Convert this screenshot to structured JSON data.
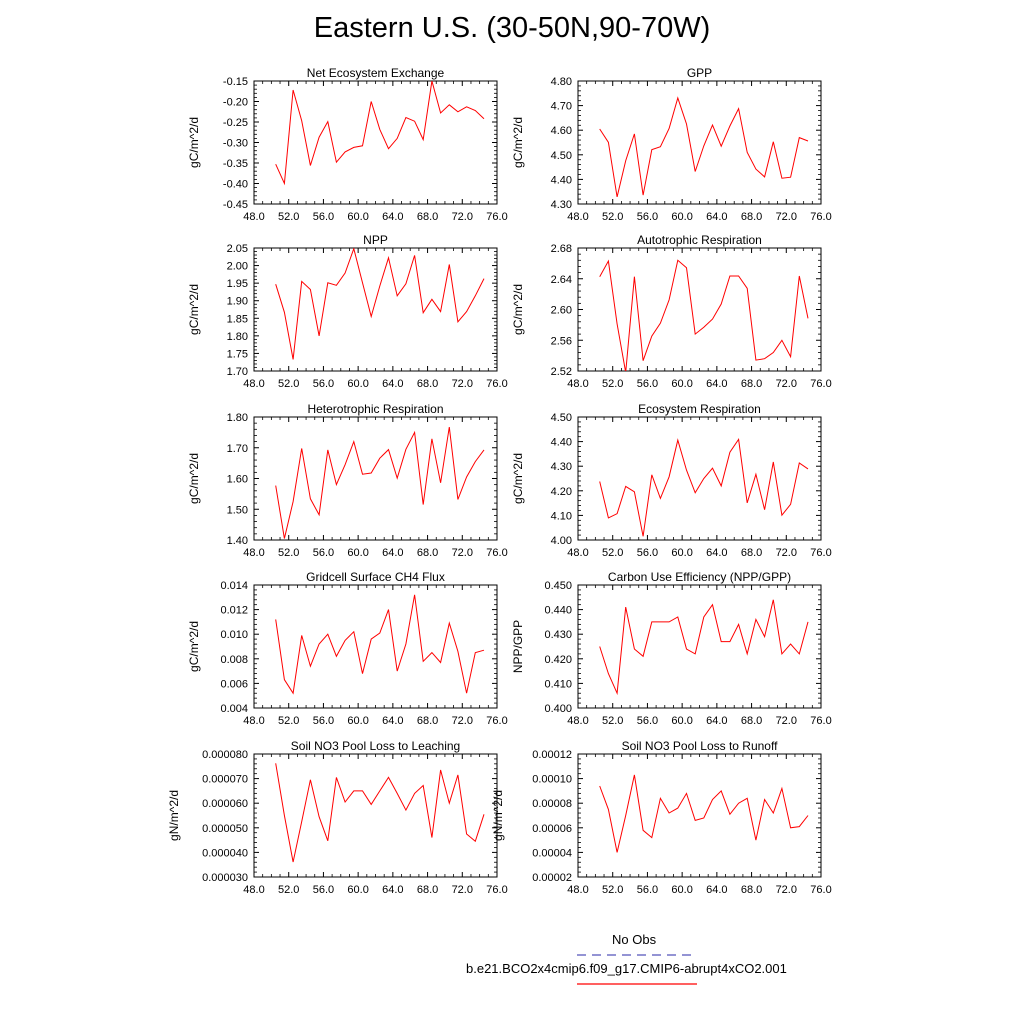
{
  "title": "Eastern U.S. (30-50N,90-70W)",
  "series_colors": {
    "model": "#ff0000",
    "obs": "#5555bb"
  },
  "legend": {
    "obs_label": "No Obs",
    "model_label": "b.e21.BCO2x4cmip6.f09_g17.CMIP6-abrupt4xCO2.001"
  },
  "chart_data": [
    {
      "type": "line",
      "title": "Net Ecosystem Exchange",
      "xlabel": "",
      "ylabel": "gC/m^2/d",
      "xlim": [
        48,
        76
      ],
      "ylim": [
        -0.45,
        -0.15
      ],
      "xticks": [
        "48.0",
        "52.0",
        "56.0",
        "60.0",
        "64.0",
        "68.0",
        "72.0",
        "76.0"
      ],
      "yticks": [
        "-0.45",
        "-0.40",
        "-0.35",
        "-0.30",
        "-0.25",
        "-0.20",
        "-0.15"
      ],
      "x": [
        50.5,
        51.5,
        52.5,
        53.5,
        54.5,
        55.5,
        56.5,
        57.5,
        58.5,
        59.5,
        60.5,
        61.5,
        62.5,
        63.5,
        64.5,
        65.5,
        66.5,
        67.5,
        68.5,
        69.5,
        70.5,
        71.5,
        72.5,
        73.5,
        74.5
      ],
      "values": [
        -0.353,
        -0.4,
        -0.172,
        -0.247,
        -0.356,
        -0.287,
        -0.249,
        -0.348,
        -0.323,
        -0.312,
        -0.308,
        -0.2,
        -0.268,
        -0.315,
        -0.29,
        -0.239,
        -0.248,
        -0.293,
        -0.15,
        -0.228,
        -0.208,
        -0.225,
        -0.213,
        -0.222,
        -0.242
      ]
    },
    {
      "type": "line",
      "title": "GPP",
      "xlabel": "",
      "ylabel": "gC/m^2/d",
      "xlim": [
        48,
        76
      ],
      "ylim": [
        4.3,
        4.8
      ],
      "xticks": [
        "48.0",
        "52.0",
        "56.0",
        "60.0",
        "64.0",
        "68.0",
        "72.0",
        "76.0"
      ],
      "yticks": [
        "4.30",
        "4.40",
        "4.50",
        "4.60",
        "4.70",
        "4.80"
      ],
      "x": [
        50.5,
        51.5,
        52.5,
        53.5,
        54.5,
        55.5,
        56.5,
        57.5,
        58.5,
        59.5,
        60.5,
        61.5,
        62.5,
        63.5,
        64.5,
        65.5,
        66.5,
        67.5,
        68.5,
        69.5,
        70.5,
        71.5,
        72.5,
        73.5,
        74.5
      ],
      "values": [
        4.605,
        4.551,
        4.329,
        4.476,
        4.585,
        4.336,
        4.521,
        4.533,
        4.607,
        4.731,
        4.625,
        4.432,
        4.536,
        4.621,
        4.535,
        4.617,
        4.688,
        4.51,
        4.442,
        4.41,
        4.553,
        4.405,
        4.409,
        4.57,
        4.556
      ]
    },
    {
      "type": "line",
      "title": "NPP",
      "xlabel": "",
      "ylabel": "gC/m^2/d",
      "xlim": [
        48,
        76
      ],
      "ylim": [
        1.7,
        2.05
      ],
      "xticks": [
        "48.0",
        "52.0",
        "56.0",
        "60.0",
        "64.0",
        "68.0",
        "72.0",
        "76.0"
      ],
      "yticks": [
        "1.70",
        "1.75",
        "1.80",
        "1.85",
        "1.90",
        "1.95",
        "2.00",
        "2.05"
      ],
      "x": [
        50.5,
        51.5,
        52.5,
        53.5,
        54.5,
        55.5,
        56.5,
        57.5,
        58.5,
        59.5,
        60.5,
        61.5,
        62.5,
        63.5,
        64.5,
        65.5,
        66.5,
        67.5,
        68.5,
        69.5,
        70.5,
        71.5,
        72.5,
        73.5,
        74.5
      ],
      "values": [
        1.947,
        1.867,
        1.733,
        1.955,
        1.932,
        1.8,
        1.951,
        1.944,
        1.979,
        2.048,
        1.951,
        1.855,
        1.942,
        2.022,
        1.914,
        1.948,
        2.029,
        1.866,
        1.904,
        1.869,
        2.003,
        1.84,
        1.869,
        1.914,
        1.963
      ]
    },
    {
      "type": "line",
      "title": "Autotrophic Respiration",
      "xlabel": "",
      "ylabel": "gC/m^2/d",
      "xlim": [
        48,
        76
      ],
      "ylim": [
        2.52,
        2.7
      ],
      "xticks": [
        "48.0",
        "52.0",
        "56.0",
        "60.0",
        "64.0",
        "68.0",
        "72.0",
        "76.0"
      ],
      "yticks": [
        "2.52",
        "2.56",
        "2.60",
        "2.64",
        "2.68"
      ],
      "x": [
        50.5,
        51.5,
        52.5,
        53.5,
        54.5,
        55.5,
        56.5,
        57.5,
        58.5,
        59.5,
        60.5,
        61.5,
        62.5,
        63.5,
        64.5,
        65.5,
        66.5,
        67.5,
        68.5,
        69.5,
        70.5,
        71.5,
        72.5,
        73.5,
        74.5
      ],
      "values": [
        2.658,
        2.681,
        2.589,
        2.518,
        2.658,
        2.535,
        2.571,
        2.59,
        2.624,
        2.682,
        2.671,
        2.574,
        2.584,
        2.596,
        2.618,
        2.659,
        2.659,
        2.641,
        2.536,
        2.538,
        2.547,
        2.565,
        2.541,
        2.659,
        2.597
      ]
    },
    {
      "type": "line",
      "title": "Heterotrophic Respiration",
      "xlabel": "",
      "ylabel": "gC/m^2/d",
      "xlim": [
        48,
        76
      ],
      "ylim": [
        1.4,
        1.8
      ],
      "xticks": [
        "48.0",
        "52.0",
        "56.0",
        "60.0",
        "64.0",
        "68.0",
        "72.0",
        "76.0"
      ],
      "yticks": [
        "1.40",
        "1.50",
        "1.60",
        "1.70",
        "1.80"
      ],
      "x": [
        50.5,
        51.5,
        52.5,
        53.5,
        54.5,
        55.5,
        56.5,
        57.5,
        58.5,
        59.5,
        60.5,
        61.5,
        62.5,
        63.5,
        64.5,
        65.5,
        66.5,
        67.5,
        68.5,
        69.5,
        70.5,
        71.5,
        72.5,
        73.5,
        74.5
      ],
      "values": [
        1.577,
        1.405,
        1.525,
        1.698,
        1.534,
        1.482,
        1.693,
        1.58,
        1.645,
        1.72,
        1.614,
        1.618,
        1.666,
        1.694,
        1.601,
        1.695,
        1.75,
        1.515,
        1.729,
        1.586,
        1.767,
        1.532,
        1.605,
        1.655,
        1.693
      ]
    },
    {
      "type": "line",
      "title": "Ecosystem Respiration",
      "xlabel": "",
      "ylabel": "gC/m^2/d",
      "xlim": [
        48,
        76
      ],
      "ylim": [
        4.0,
        4.5
      ],
      "xticks": [
        "48.0",
        "52.0",
        "56.0",
        "60.0",
        "64.0",
        "68.0",
        "72.0",
        "76.0"
      ],
      "yticks": [
        "4.00",
        "4.10",
        "4.20",
        "4.30",
        "4.40",
        "4.50"
      ],
      "x": [
        50.5,
        51.5,
        52.5,
        53.5,
        54.5,
        55.5,
        56.5,
        57.5,
        58.5,
        59.5,
        60.5,
        61.5,
        62.5,
        63.5,
        64.5,
        65.5,
        66.5,
        67.5,
        68.5,
        69.5,
        70.5,
        71.5,
        72.5,
        73.5,
        74.5
      ],
      "values": [
        4.238,
        4.09,
        4.107,
        4.218,
        4.196,
        4.015,
        4.265,
        4.169,
        4.257,
        4.406,
        4.284,
        4.192,
        4.25,
        4.292,
        4.22,
        4.357,
        4.409,
        4.151,
        4.267,
        4.123,
        4.317,
        4.101,
        4.145,
        4.313,
        4.289
      ]
    },
    {
      "type": "line",
      "title": "Gridcell Surface CH4 Flux",
      "xlabel": "",
      "ylabel": "gC/m^2/d",
      "xlim": [
        48,
        76
      ],
      "ylim": [
        0.004,
        0.014
      ],
      "xticks": [
        "48.0",
        "52.0",
        "56.0",
        "60.0",
        "64.0",
        "68.0",
        "72.0",
        "76.0"
      ],
      "yticks": [
        "0.004",
        "0.006",
        "0.008",
        "0.010",
        "0.012",
        "0.014"
      ],
      "x": [
        50.5,
        51.5,
        52.5,
        53.5,
        54.5,
        55.5,
        56.5,
        57.5,
        58.5,
        59.5,
        60.5,
        61.5,
        62.5,
        63.5,
        64.5,
        65.5,
        66.5,
        67.5,
        68.5,
        69.5,
        70.5,
        71.5,
        72.5,
        73.5,
        74.5
      ],
      "values": [
        0.0112,
        0.0063,
        0.0052,
        0.0099,
        0.0074,
        0.0092,
        0.01,
        0.0082,
        0.0095,
        0.0102,
        0.0068,
        0.0096,
        0.0101,
        0.012,
        0.007,
        0.0092,
        0.0132,
        0.0078,
        0.0085,
        0.0077,
        0.0109,
        0.0086,
        0.0052,
        0.0085,
        0.0087
      ]
    },
    {
      "type": "line",
      "title": "Carbon Use Efficiency (NPP/GPP)",
      "xlabel": "",
      "ylabel": "NPP/GPP",
      "xlim": [
        48,
        76
      ],
      "ylim": [
        0.4,
        0.45
      ],
      "xticks": [
        "48.0",
        "52.0",
        "56.0",
        "60.0",
        "64.0",
        "68.0",
        "72.0",
        "76.0"
      ],
      "yticks": [
        "0.400",
        "0.410",
        "0.420",
        "0.430",
        "0.440",
        "0.450"
      ],
      "x": [
        50.5,
        51.5,
        52.5,
        53.5,
        54.5,
        55.5,
        56.5,
        57.5,
        58.5,
        59.5,
        60.5,
        61.5,
        62.5,
        63.5,
        64.5,
        65.5,
        66.5,
        67.5,
        68.5,
        69.5,
        70.5,
        71.5,
        72.5,
        73.5,
        74.5
      ],
      "values": [
        0.425,
        0.414,
        0.406,
        0.441,
        0.424,
        0.421,
        0.435,
        0.435,
        0.435,
        0.437,
        0.424,
        0.422,
        0.437,
        0.442,
        0.427,
        0.427,
        0.434,
        0.422,
        0.436,
        0.429,
        0.444,
        0.422,
        0.426,
        0.422,
        0.435
      ]
    },
    {
      "type": "line",
      "title": "Soil NO3 Pool Loss to Leaching",
      "xlabel": "",
      "ylabel": "gN/m^2/d",
      "xlim": [
        48,
        76
      ],
      "ylim": [
        3e-05,
        8e-05
      ],
      "xticks": [
        "48.0",
        "52.0",
        "56.0",
        "60.0",
        "64.0",
        "68.0",
        "72.0",
        "76.0"
      ],
      "yticks": [
        "0.000030",
        "0.000040",
        "0.000050",
        "0.000060",
        "0.000070",
        "0.000080"
      ],
      "x": [
        50.5,
        51.5,
        52.5,
        53.5,
        54.5,
        55.5,
        56.5,
        57.5,
        58.5,
        59.5,
        60.5,
        61.5,
        62.5,
        63.5,
        64.5,
        65.5,
        66.5,
        67.5,
        68.5,
        69.5,
        70.5,
        71.5,
        72.5,
        73.5,
        74.5
      ],
      "values": [
        7.62e-05,
        5.5e-05,
        3.61e-05,
        5.25e-05,
        6.95e-05,
        5.45e-05,
        4.47e-05,
        7.05e-05,
        6.05e-05,
        6.5e-05,
        6.5e-05,
        5.95e-05,
        6.5e-05,
        7.05e-05,
        6.4e-05,
        5.72e-05,
        6.4e-05,
        6.72e-05,
        4.6e-05,
        7.35e-05,
        6e-05,
        7.15e-05,
        4.75e-05,
        4.45e-05,
        5.55e-05
      ]
    },
    {
      "type": "line",
      "title": "Soil NO3 Pool Loss to Runoff",
      "xlabel": "",
      "ylabel": "gN/m^2/d",
      "xlim": [
        48,
        76
      ],
      "ylim": [
        2e-05,
        0.00012
      ],
      "xticks": [
        "48.0",
        "52.0",
        "56.0",
        "60.0",
        "64.0",
        "68.0",
        "72.0",
        "76.0"
      ],
      "yticks": [
        "0.00002",
        "0.00004",
        "0.00006",
        "0.00008",
        "0.00010",
        "0.00012"
      ],
      "x": [
        50.5,
        51.5,
        52.5,
        53.5,
        54.5,
        55.5,
        56.5,
        57.5,
        58.5,
        59.5,
        60.5,
        61.5,
        62.5,
        63.5,
        64.5,
        65.5,
        66.5,
        67.5,
        68.5,
        69.5,
        70.5,
        71.5,
        72.5,
        73.5,
        74.5
      ],
      "values": [
        9.4e-05,
        7.5e-05,
        4e-05,
        7e-05,
        0.000103,
        5.8e-05,
        5.2e-05,
        8.4e-05,
        7.2e-05,
        7.6e-05,
        8.8e-05,
        6.6e-05,
        6.8e-05,
        8.3e-05,
        9e-05,
        7.1e-05,
        8e-05,
        8.4e-05,
        5e-05,
        8.3e-05,
        7.2e-05,
        9.2e-05,
        6e-05,
        6.1e-05,
        7e-05
      ]
    }
  ]
}
